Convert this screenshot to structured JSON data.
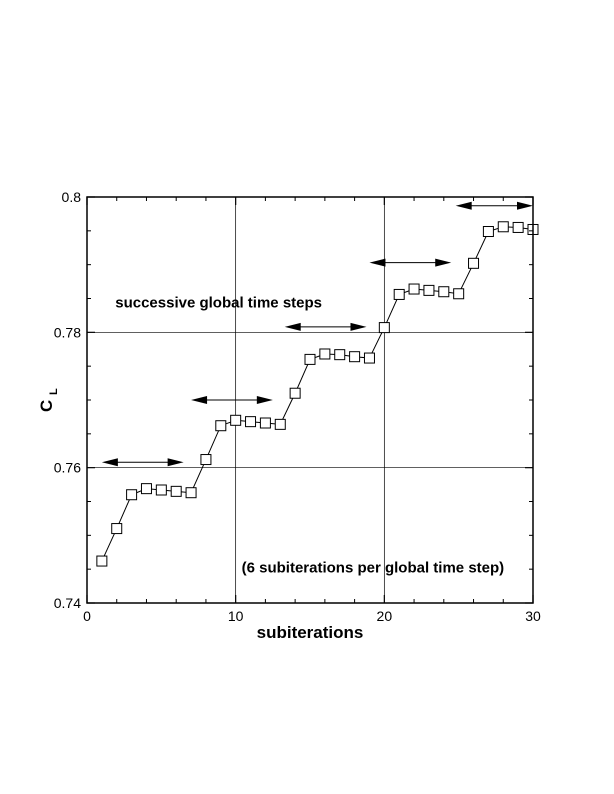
{
  "chart_data": {
    "type": "line",
    "xlabel": "subiterations",
    "ylabel": "C",
    "ylabel_subscript": "L",
    "xlim": [
      0,
      30
    ],
    "ylim": [
      0.74,
      0.8
    ],
    "xticks": [
      "0",
      "10",
      "20",
      "30"
    ],
    "yticks": [
      "0.74",
      "0.76",
      "0.78",
      "0.8"
    ],
    "grid": true,
    "marker": "square",
    "series": [
      {
        "x": [
          1,
          2,
          3,
          4,
          5,
          6,
          7,
          8,
          9,
          10,
          11,
          12,
          13,
          14,
          15,
          16,
          17,
          18,
          19,
          20,
          21,
          22,
          23,
          24,
          25,
          26,
          27,
          28,
          29,
          30
        ],
        "values": [
          0.7462,
          0.751,
          0.756,
          0.7569,
          0.7567,
          0.7565,
          0.7563,
          0.7612,
          0.7662,
          0.767,
          0.7668,
          0.7666,
          0.7664,
          0.771,
          0.776,
          0.7768,
          0.7767,
          0.7764,
          0.7762,
          0.7807,
          0.7856,
          0.7864,
          0.7862,
          0.786,
          0.7857,
          0.7902,
          0.7949,
          0.7956,
          0.7955,
          0.7952
        ]
      }
    ],
    "annotations": [
      {
        "text": "successive global time steps",
        "x": 1.9,
        "y": 0.7837
      },
      {
        "text": "(6 subiterations per global time step)",
        "x": 10.4,
        "y": 0.7445
      }
    ],
    "arrows": [
      {
        "x1": 1.0,
        "x2": 6.5,
        "y": 0.7608
      },
      {
        "x1": 7.0,
        "x2": 12.5,
        "y": 0.77
      },
      {
        "x1": 13.3,
        "x2": 18.8,
        "y": 0.7808
      },
      {
        "x1": 19.0,
        "x2": 24.5,
        "y": 0.7903
      },
      {
        "x1": 24.8,
        "x2": 30.0,
        "y": 0.7987
      }
    ]
  }
}
